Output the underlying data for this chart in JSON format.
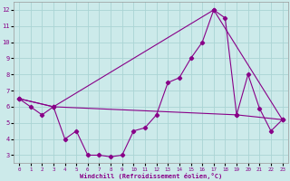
{
  "xlabel": "Windchill (Refroidissement éolien,°C)",
  "xlim": [
    -0.5,
    23.5
  ],
  "ylim": [
    2.5,
    12.5
  ],
  "yticks": [
    3,
    4,
    5,
    6,
    7,
    8,
    9,
    10,
    11,
    12
  ],
  "xticks": [
    0,
    1,
    2,
    3,
    4,
    5,
    6,
    7,
    8,
    9,
    10,
    11,
    12,
    13,
    14,
    15,
    16,
    17,
    18,
    19,
    20,
    21,
    22,
    23
  ],
  "bg_color": "#cceaea",
  "line_color": "#880088",
  "grid_color": "#aad4d4",
  "line1_x": [
    0,
    1,
    2,
    3,
    4,
    5,
    6,
    7,
    8,
    9,
    10,
    11,
    12,
    13,
    14,
    15,
    16,
    17,
    18,
    19,
    20,
    21,
    22,
    23
  ],
  "line1_y": [
    6.5,
    6.0,
    5.5,
    6.0,
    4.0,
    4.5,
    3.0,
    3.0,
    2.9,
    3.0,
    4.5,
    4.7,
    5.5,
    7.5,
    7.8,
    9.0,
    10.0,
    12.0,
    11.5,
    5.5,
    8.0,
    5.9,
    4.5,
    5.2
  ],
  "line2_x": [
    0,
    3,
    17,
    23
  ],
  "line2_y": [
    6.5,
    6.0,
    12.0,
    5.2
  ],
  "line3_x": [
    0,
    3,
    19,
    23
  ],
  "line3_y": [
    6.5,
    6.0,
    5.5,
    5.2
  ]
}
